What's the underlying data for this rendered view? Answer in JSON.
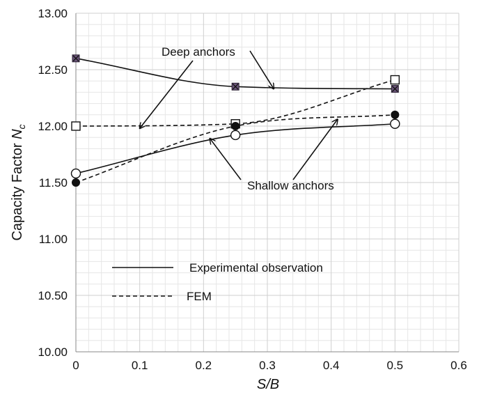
{
  "chart_data": {
    "type": "line",
    "xlabel": "S/B",
    "ylabel_main": "Capacity Factor ",
    "ylabel_sym": "N",
    "ylabel_sub": "c",
    "xlim": [
      0,
      0.6
    ],
    "ylim": [
      10.0,
      13.0
    ],
    "xticks": [
      "0",
      "0.1",
      "0.2",
      "0.3",
      "0.4",
      "0.5",
      "0.6"
    ],
    "yticks": [
      "10.00",
      "10.50",
      "11.00",
      "11.50",
      "12.00",
      "12.50",
      "13.00"
    ],
    "grid": true,
    "series": [
      {
        "name": "Experimental observation",
        "group": "deep",
        "style": "solid",
        "x": [
          0,
          0.25,
          0.5
        ],
        "y": [
          12.6,
          12.35,
          12.33
        ],
        "marker": "square-x"
      },
      {
        "name": "FEM",
        "group": "deep",
        "style": "dashed",
        "x": [
          0,
          0.25,
          0.5
        ],
        "y": [
          12.0,
          12.02,
          12.41
        ],
        "marker": "open-square"
      },
      {
        "name": "Experimental observation",
        "group": "shallow",
        "style": "solid",
        "x": [
          0,
          0.25,
          0.5
        ],
        "y": [
          11.58,
          11.92,
          12.02
        ],
        "marker": "open-circle"
      },
      {
        "name": "FEM",
        "group": "shallow",
        "style": "dashed",
        "x": [
          0,
          0.25,
          0.5
        ],
        "y": [
          11.5,
          12.0,
          12.1
        ],
        "marker": "filled-circle"
      }
    ],
    "annotations": {
      "deep": {
        "text": "Deep anchors",
        "points": [
          [
            0.1,
            11.98
          ],
          [
            0.31,
            12.33
          ]
        ]
      },
      "shallow": {
        "text": "Shallow anchors",
        "points": [
          [
            0.21,
            11.89
          ],
          [
            0.41,
            12.06
          ]
        ]
      }
    },
    "legend": [
      {
        "label": "Experimental observation",
        "style": "solid"
      },
      {
        "label": "FEM",
        "style": "dashed"
      }
    ]
  }
}
